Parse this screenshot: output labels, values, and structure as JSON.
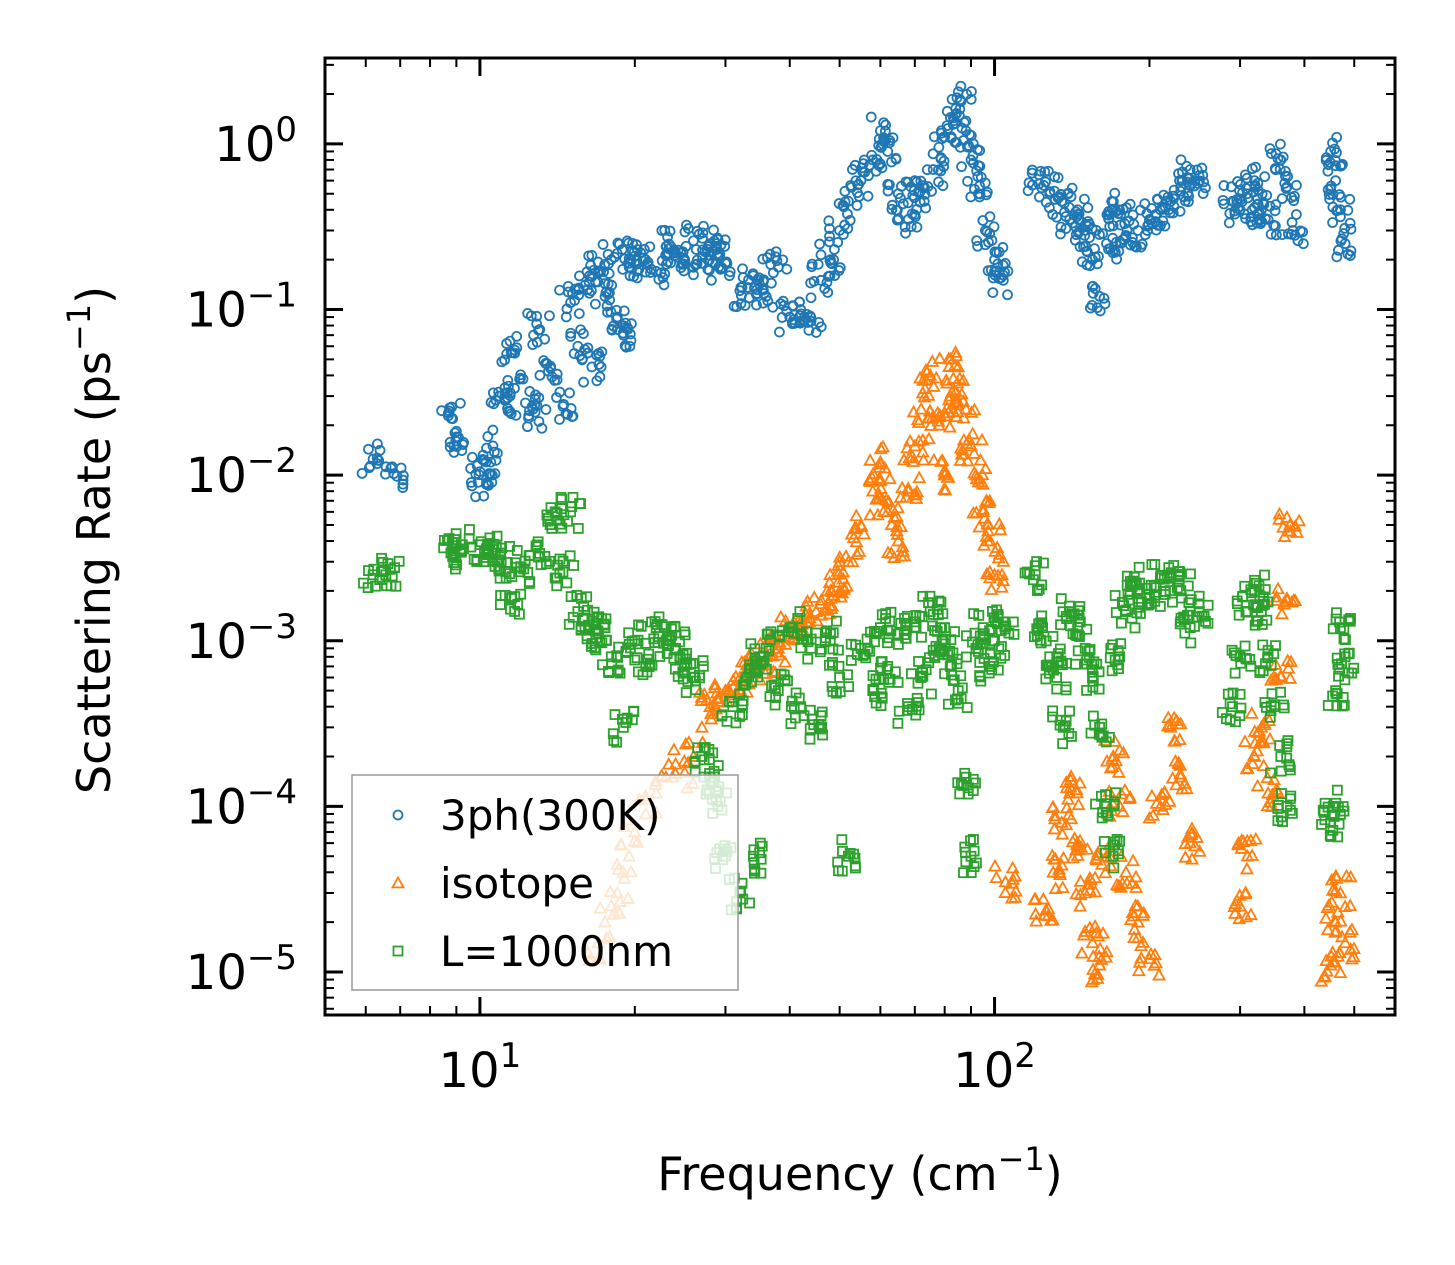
{
  "chart_data": {
    "type": "scatter",
    "title": "",
    "xlabel": "Frequency (cm",
    "xlabel_unit_exp": "−1",
    "xlabel_close": ")",
    "ylabel": "Scattering Rate (ps",
    "ylabel_unit_exp": "−1",
    "ylabel_close": ")",
    "xscale": "log",
    "yscale": "log",
    "xlim": [
      5,
      600
    ],
    "ylim": [
      5.5e-06,
      3.3
    ],
    "xticks": [
      {
        "value": 10,
        "base": "10",
        "exp": "1"
      },
      {
        "value": 100,
        "base": "10",
        "exp": "2"
      }
    ],
    "yticks": [
      {
        "value": 1,
        "base": "10",
        "exp": "0"
      },
      {
        "value": 0.1,
        "base": "10",
        "exp": "−1"
      },
      {
        "value": 0.01,
        "base": "10",
        "exp": "−2"
      },
      {
        "value": 0.001,
        "base": "10",
        "exp": "−3"
      },
      {
        "value": 0.0001,
        "base": "10",
        "exp": "−4"
      },
      {
        "value": 1e-05,
        "base": "10",
        "exp": "−5"
      }
    ],
    "legend_position": "lower-left",
    "series": [
      {
        "name": "3ph(300K)",
        "marker": "circle",
        "color": "#1f77b4",
        "x": [
          6.2,
          6.8,
          8.8,
          8.9,
          10.0,
          10.3,
          10.6,
          10.9,
          11.2,
          11.5,
          12.5,
          12.8,
          13.0,
          13.5,
          14.5,
          15.0,
          15.5,
          16.0,
          16.5,
          17.0,
          17.5,
          18.0,
          18.5,
          19.0,
          19.5,
          20.0,
          21.0,
          22.0,
          23.0,
          24.0,
          25.0,
          26.0,
          27.0,
          28.0,
          29.0,
          30.0,
          32.0,
          34.0,
          36.0,
          38.0,
          40.0,
          42.0,
          44.0,
          46.0,
          48.0,
          50.0,
          52.0,
          55.0,
          58.0,
          60.0,
          62.0,
          65.0,
          68.0,
          70.0,
          73.0,
          76.0,
          80.0,
          84.0,
          86.0,
          88.0,
          90.0,
          93.0,
          96.0,
          100.0,
          104.0,
          122.0,
          128.0,
          135.0,
          140.0,
          145.0,
          150.0,
          155.0,
          160.0,
          165.0,
          170.0,
          175.0,
          180.0,
          190.0,
          200.0,
          210.0,
          220.0,
          230.0,
          240.0,
          245.0,
          290.0,
          300.0,
          310.0,
          320.0,
          330.0,
          340.0,
          360.0,
          370.0,
          380.0,
          450.0,
          460.0,
          470.0,
          480.0
        ],
        "y": [
          0.0125,
          0.0102,
          0.022,
          0.015,
          0.0105,
          0.009,
          0.015,
          0.03,
          0.029,
          0.055,
          0.032,
          0.024,
          0.075,
          0.047,
          0.026,
          0.11,
          0.06,
          0.14,
          0.045,
          0.17,
          0.12,
          0.2,
          0.09,
          0.07,
          0.18,
          0.21,
          0.2,
          0.17,
          0.24,
          0.22,
          0.2,
          0.26,
          0.19,
          0.25,
          0.21,
          0.19,
          0.13,
          0.16,
          0.12,
          0.18,
          0.09,
          0.1,
          0.085,
          0.15,
          0.2,
          0.3,
          0.45,
          0.6,
          0.8,
          1.2,
          0.9,
          0.5,
          0.35,
          0.6,
          0.45,
          0.7,
          1.1,
          1.5,
          1.8,
          1.2,
          0.8,
          0.5,
          0.3,
          0.2,
          0.15,
          0.65,
          0.5,
          0.45,
          0.35,
          0.4,
          0.3,
          0.2,
          0.12,
          0.25,
          0.32,
          0.4,
          0.28,
          0.3,
          0.35,
          0.4,
          0.45,
          0.55,
          0.7,
          0.6,
          0.45,
          0.4,
          0.5,
          0.6,
          0.4,
          0.35,
          0.8,
          0.55,
          0.3,
          0.9,
          0.6,
          0.4,
          0.25
        ]
      },
      {
        "name": "isotope",
        "marker": "triangle",
        "color": "#ff7f0e",
        "x": [
          16.5,
          17.0,
          17.5,
          18.0,
          18.5,
          19.0,
          19.5,
          20.0,
          21.0,
          22.0,
          23.0,
          24.0,
          25.0,
          26.0,
          27.0,
          28.0,
          30.0,
          32.0,
          34.0,
          36.0,
          38.0,
          40.0,
          42.0,
          45.0,
          48.0,
          50.0,
          52.0,
          55.0,
          58.0,
          60.0,
          62.0,
          65.0,
          68.0,
          70.0,
          72.0,
          75.0,
          78.0,
          80.0,
          82.0,
          85.0,
          88.0,
          90.0,
          92.0,
          95.0,
          98.0,
          100.0,
          105.0,
          125.0,
          130.0,
          135.0,
          140.0,
          145.0,
          150.0,
          155.0,
          160.0,
          165.0,
          170.0,
          175.0,
          180.0,
          190.0,
          200.0,
          210.0,
          220.0,
          230.0,
          240.0,
          300.0,
          310.0,
          320.0,
          330.0,
          340.0,
          360.0,
          370.0,
          375.0,
          450.0,
          460.0,
          470.0,
          480.0
        ],
        "y": [
          1.2e-05,
          1.5e-05,
          2e-05,
          2.5e-05,
          3e-05,
          4e-05,
          5e-05,
          7e-05,
          9e-05,
          0.00012,
          0.00015,
          0.00018,
          0.00016,
          0.0002,
          0.0003,
          0.0004,
          0.0005,
          0.0006,
          0.0007,
          0.0008,
          0.0009,
          0.0011,
          0.0012,
          0.0015,
          0.0018,
          0.002,
          0.003,
          0.005,
          0.008,
          0.012,
          0.006,
          0.004,
          0.008,
          0.015,
          0.025,
          0.04,
          0.02,
          0.01,
          0.03,
          0.045,
          0.025,
          0.015,
          0.01,
          0.006,
          0.004,
          0.0025,
          3.5e-05,
          2.2e-05,
          4e-05,
          8e-05,
          0.00012,
          6e-05,
          3e-05,
          1.5e-05,
          1.1e-05,
          5e-05,
          0.0002,
          0.0001,
          4e-05,
          2e-05,
          1.2e-05,
          0.0001,
          0.0003,
          0.00015,
          6e-05,
          2.5e-05,
          5e-05,
          0.0002,
          0.0003,
          0.00012,
          0.0006,
          0.0018,
          0.005,
          1.1e-05,
          2e-05,
          3e-05,
          1.5e-05
        ]
      },
      {
        "name": "L=1000nm",
        "marker": "square",
        "color": "#2ca02c",
        "x": [
          6.2,
          6.7,
          8.9,
          8.9,
          10.0,
          10.3,
          10.8,
          11.0,
          11.5,
          12.0,
          13.0,
          14.0,
          14.5,
          15.0,
          15.5,
          16.0,
          17.0,
          17.5,
          18.0,
          19.0,
          20.0,
          21.0,
          22.0,
          23.0,
          24.0,
          25.0,
          26.0,
          27.0,
          28.0,
          29.0,
          30.0,
          31.0,
          32.0,
          33.0,
          34.0,
          35.0,
          36.0,
          38.0,
          40.0,
          42.0,
          44.0,
          46.0,
          48.0,
          50.0,
          52.0,
          55.0,
          58.0,
          60.0,
          62.0,
          65.0,
          68.0,
          70.0,
          72.0,
          75.0,
          78.0,
          80.0,
          82.0,
          85.0,
          88.0,
          90.0,
          92.0,
          95.0,
          98.0,
          100.0,
          104.0,
          120.0,
          124.0,
          128.0,
          132.0,
          136.0,
          140.0,
          145.0,
          150.0,
          155.0,
          160.0,
          165.0,
          170.0,
          175.0,
          180.0,
          185.0,
          190.0,
          200.0,
          210.0,
          220.0,
          230.0,
          240.0,
          250.0,
          290.0,
          300.0,
          310.0,
          320.0,
          330.0,
          340.0,
          350.0,
          360.0,
          370.0,
          450.0,
          455.0,
          460.0,
          470.0,
          480.0
        ],
        "y": [
          0.0025,
          0.0027,
          0.0035,
          0.0033,
          0.0038,
          0.0036,
          0.003,
          0.003,
          0.0018,
          0.0028,
          0.0032,
          0.006,
          0.0026,
          0.006,
          0.0015,
          0.0012,
          0.0011,
          0.0012,
          0.0008,
          0.0003,
          0.001,
          0.0007,
          0.0012,
          0.001,
          0.0009,
          0.0007,
          0.0006,
          0.0002,
          0.00015,
          0.0001,
          5e-05,
          0.0004,
          3e-05,
          0.0006,
          5e-05,
          0.0008,
          0.0009,
          0.0005,
          0.0012,
          0.0004,
          0.0009,
          0.0003,
          0.0011,
          0.0006,
          5e-05,
          0.0009,
          0.0005,
          0.0012,
          0.0007,
          0.0011,
          0.0004,
          0.0013,
          0.0006,
          0.0015,
          0.0009,
          0.0012,
          0.0007,
          0.0005,
          0.00015,
          5e-05,
          0.0009,
          0.0012,
          0.0007,
          0.001,
          0.0013,
          0.0025,
          0.0012,
          0.0008,
          0.0006,
          0.0003,
          0.0015,
          0.0012,
          0.0009,
          0.0006,
          0.0003,
          0.0001,
          5e-05,
          0.0008,
          0.0015,
          0.0022,
          0.002,
          0.0018,
          0.0024,
          0.0025,
          0.002,
          0.0012,
          0.0015,
          0.0004,
          0.0008,
          0.0015,
          0.002,
          0.0015,
          0.0008,
          0.0004,
          0.0002,
          0.0001,
          8e-05,
          0.0001,
          0.0005,
          0.0012,
          0.0008
        ]
      }
    ]
  }
}
